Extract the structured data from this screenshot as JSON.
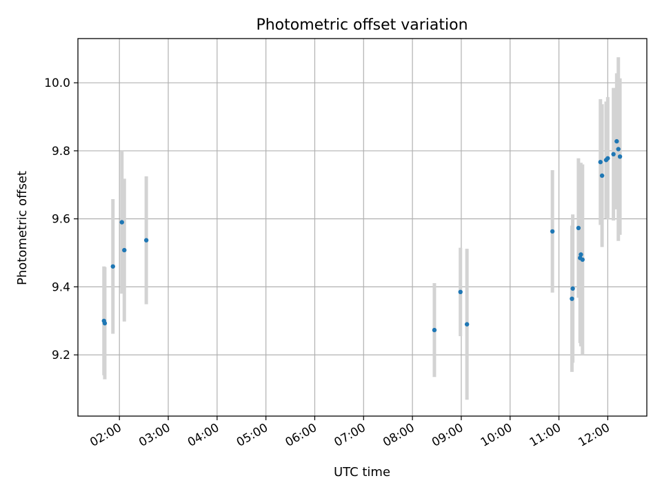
{
  "chart_data": {
    "type": "scatter",
    "title": "Photometric offset variation",
    "xlabel": "UTC time",
    "ylabel": "Photometric offset",
    "x_ticks": [
      "02:00",
      "03:00",
      "04:00",
      "05:00",
      "06:00",
      "07:00",
      "08:00",
      "09:00",
      "10:00",
      "11:00",
      "12:00"
    ],
    "y_ticks": [
      "9.2",
      "9.4",
      "9.6",
      "9.8",
      "10.0"
    ],
    "xlim": [
      "01:09",
      "12:48"
    ],
    "ylim": [
      9.02,
      10.13
    ],
    "grid": true,
    "colors": {
      "points": "#1f77b4",
      "errorbars": "#d3d3d3"
    },
    "points": [
      {
        "x": "01:41",
        "y": 9.3,
        "err": 0.16
      },
      {
        "x": "01:42",
        "y": 9.293,
        "err": 0.165
      },
      {
        "x": "01:52",
        "y": 9.46,
        "err": 0.198
      },
      {
        "x": "02:03",
        "y": 9.59,
        "err": 0.21
      },
      {
        "x": "02:06",
        "y": 9.508,
        "err": 0.21
      },
      {
        "x": "02:33",
        "y": 9.537,
        "err": 0.188
      },
      {
        "x": "08:27",
        "y": 9.273,
        "err": 0.138
      },
      {
        "x": "08:59",
        "y": 9.385,
        "err": 0.13
      },
      {
        "x": "09:07",
        "y": 9.29,
        "err": 0.222
      },
      {
        "x": "10:52",
        "y": 9.563,
        "err": 0.18
      },
      {
        "x": "11:16",
        "y": 9.365,
        "err": 0.215
      },
      {
        "x": "11:17",
        "y": 9.395,
        "err": 0.218
      },
      {
        "x": "11:24",
        "y": 9.573,
        "err": 0.205
      },
      {
        "x": "11:26",
        "y": 9.485,
        "err": 0.25
      },
      {
        "x": "11:27",
        "y": 9.495,
        "err": 0.27
      },
      {
        "x": "11:29",
        "y": 9.48,
        "err": 0.28
      },
      {
        "x": "11:51",
        "y": 9.767,
        "err": 0.185
      },
      {
        "x": "11:53",
        "y": 9.727,
        "err": 0.21
      },
      {
        "x": "11:58",
        "y": 9.773,
        "err": 0.172
      },
      {
        "x": "12:00",
        "y": 9.778,
        "err": 0.18
      },
      {
        "x": "12:07",
        "y": 9.79,
        "err": 0.195
      },
      {
        "x": "12:11",
        "y": 9.828,
        "err": 0.2
      },
      {
        "x": "12:13",
        "y": 9.805,
        "err": 0.27
      },
      {
        "x": "12:15",
        "y": 9.783,
        "err": 0.23
      }
    ]
  }
}
